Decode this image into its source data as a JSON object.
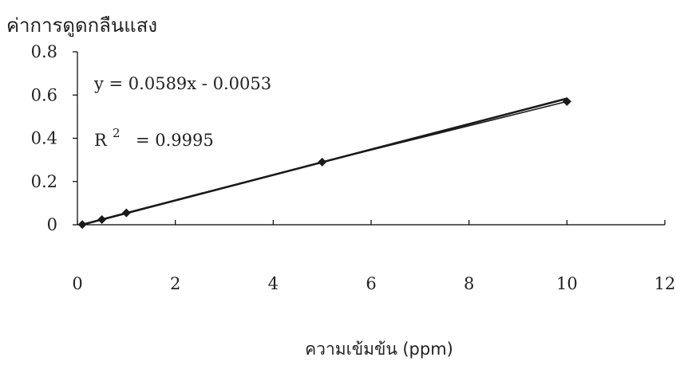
{
  "chart_data": {
    "type": "scatter",
    "ylabel": "ค่าการดูดกลืนแสง",
    "xlabel": "ความเข้มข้น (ppm)",
    "xlim": [
      0,
      12
    ],
    "ylim": [
      0,
      0.8
    ],
    "x_ticks": [
      "0",
      "2",
      "4",
      "6",
      "8",
      "10",
      "12"
    ],
    "y_ticks": [
      "0",
      "0.2",
      "0.4",
      "0.6",
      "0.8"
    ],
    "grid": false,
    "marker": "diamond",
    "points": [
      {
        "x": 0.1,
        "y": 0.001
      },
      {
        "x": 0.5,
        "y": 0.024
      },
      {
        "x": 1,
        "y": 0.055
      },
      {
        "x": 5,
        "y": 0.29
      },
      {
        "x": 10,
        "y": 0.57
      }
    ],
    "trendline": {
      "slope": 0.0589,
      "intercept": -0.0053,
      "from_x": 0.1,
      "to_x": 10
    },
    "annotations": {
      "equation": "y = 0.0589x - 0.0053",
      "r2_label": "R",
      "r2_sup": "2",
      "r2_value": "= 0.9995"
    },
    "colors": {
      "line": "#1a1a1a",
      "marker": "#1a1a1a",
      "axis": "#000000",
      "text": "#222222"
    }
  }
}
